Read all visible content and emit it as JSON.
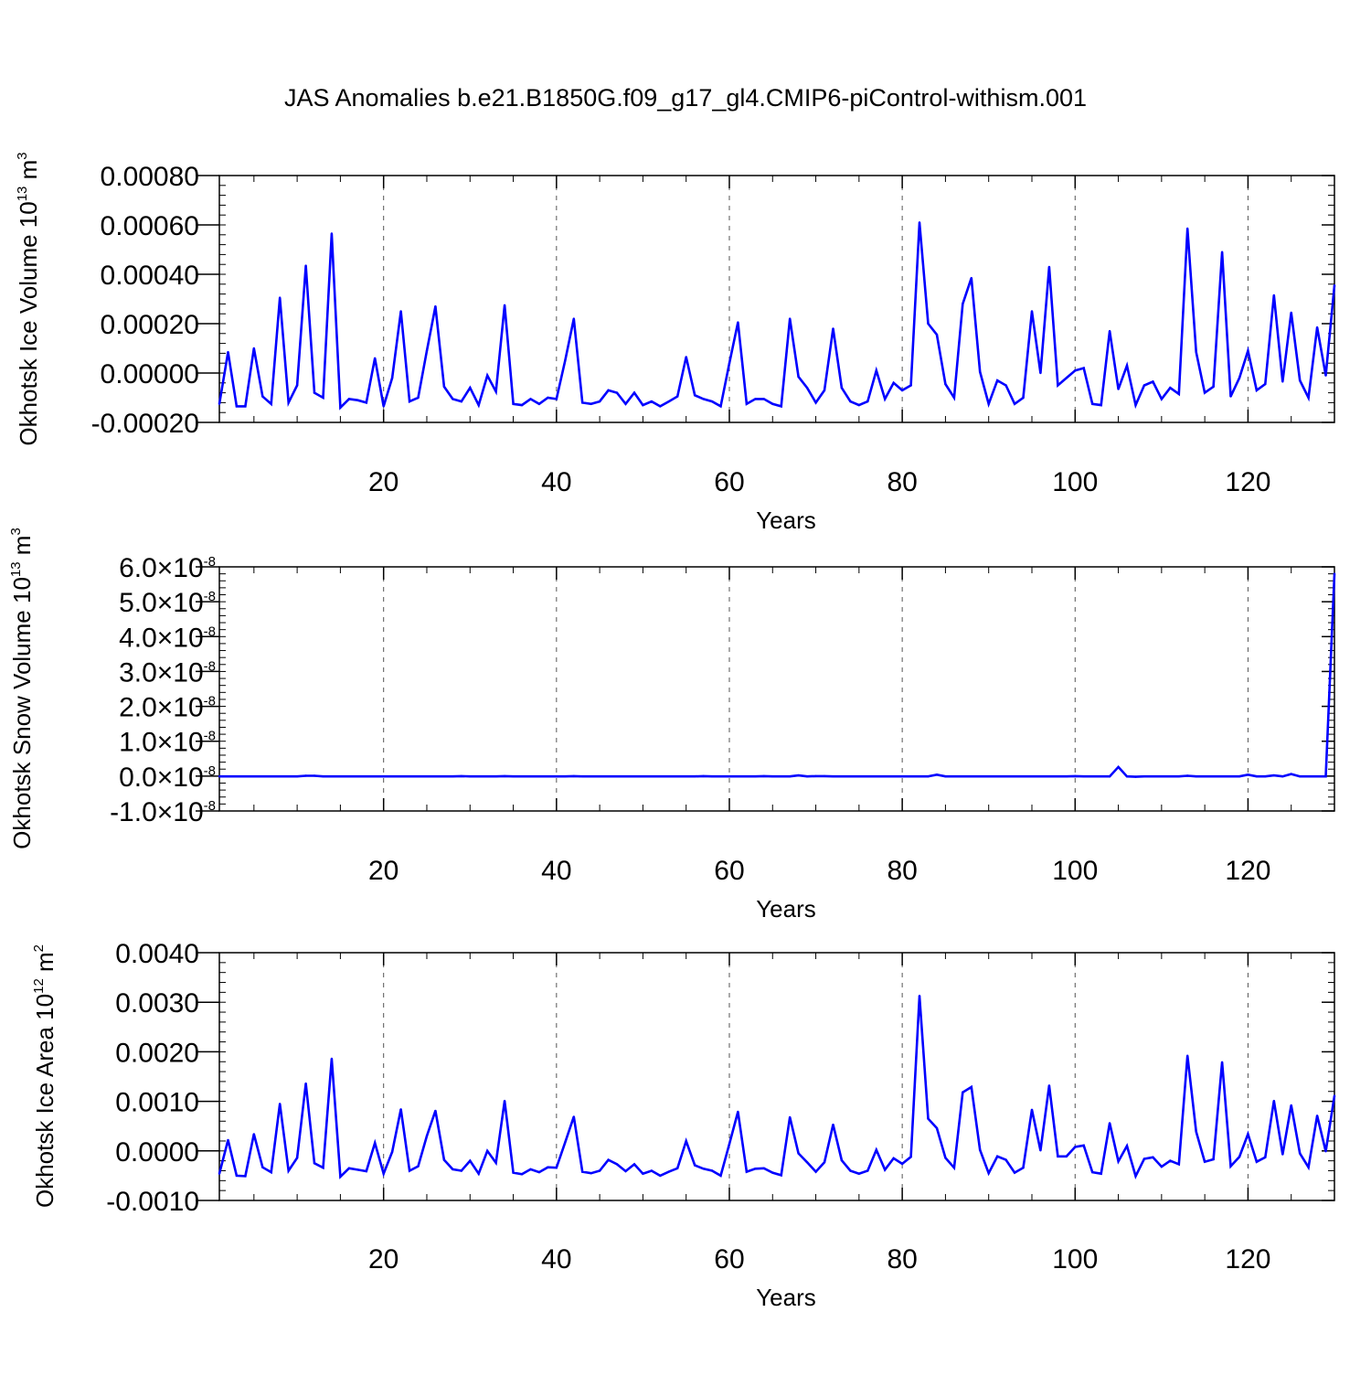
{
  "figure": {
    "title": "JAS Anomalies b.e21.B1850G.f09_g17_gl4.CMIP6-piControl-withism.001"
  },
  "style": {
    "line_color": "#0000ff",
    "axis_color": "#000000",
    "grid_color": "#555555"
  },
  "chart_data": [
    {
      "type": "line",
      "xlabel": "Years",
      "ylabel_text": "Okhotsk Ice Volume 10",
      "ylabel_exp": "13",
      "ylabel_unit": " m",
      "ylabel_unit_exp": "3",
      "xlim": [
        1,
        130
      ],
      "ylim": [
        -0.0002,
        0.0008
      ],
      "x_ticks": [
        20,
        40,
        60,
        80,
        100,
        120
      ],
      "x_tick_labels": [
        "20",
        "40",
        "60",
        "80",
        "100",
        "120"
      ],
      "y_ticks": [
        -0.0002,
        0.0,
        0.0002,
        0.0004,
        0.0006,
        0.0008
      ],
      "y_tick_labels": [
        "-0.00020",
        "0.00000",
        "0.00020",
        "0.00040",
        "0.00060",
        "0.00080"
      ],
      "y_minor_step": 4e-05,
      "grid": "vertical dashed at major x ticks",
      "x": [
        1,
        2,
        3,
        4,
        5,
        6,
        7,
        8,
        9,
        10,
        11,
        12,
        13,
        14,
        15,
        16,
        17,
        18,
        19,
        20,
        21,
        22,
        23,
        24,
        25,
        26,
        27,
        28,
        29,
        30,
        31,
        32,
        33,
        34,
        35,
        36,
        37,
        38,
        39,
        40,
        41,
        42,
        43,
        44,
        45,
        46,
        47,
        48,
        49,
        50,
        51,
        52,
        53,
        54,
        55,
        56,
        57,
        58,
        59,
        60,
        61,
        62,
        63,
        64,
        65,
        66,
        67,
        68,
        69,
        70,
        71,
        72,
        73,
        74,
        75,
        76,
        77,
        78,
        79,
        80,
        81,
        82,
        83,
        84,
        85,
        86,
        87,
        88,
        89,
        90,
        91,
        92,
        93,
        94,
        95,
        96,
        97,
        98,
        99,
        100,
        101,
        102,
        103,
        104,
        105,
        106,
        107,
        108,
        109,
        110,
        111,
        112,
        113,
        114,
        115,
        116,
        117,
        118,
        119,
        120,
        121,
        122,
        123,
        124,
        125,
        126,
        127,
        128,
        129,
        130
      ],
      "values": [
        -0.000125,
        8.5e-05,
        -0.000135,
        -0.000135,
        0.0001,
        -9.5e-05,
        -0.000125,
        0.000305,
        -0.00012,
        -5e-05,
        0.000435,
        -8e-05,
        -0.0001,
        0.000565,
        -0.00014,
        -0.000105,
        -0.00011,
        -0.00012,
        6e-05,
        -0.000135,
        -2e-05,
        0.00025,
        -0.000115,
        -0.0001,
        9e-05,
        0.00027,
        -5.5e-05,
        -0.000105,
        -0.000115,
        -6e-05,
        -0.00013,
        -1e-05,
        -7.5e-05,
        0.000275,
        -0.000125,
        -0.00013,
        -0.000105,
        -0.000125,
        -0.0001,
        -0.000105,
        5e-05,
        0.00022,
        -0.00012,
        -0.000125,
        -0.000115,
        -7e-05,
        -8e-05,
        -0.000125,
        -8e-05,
        -0.00013,
        -0.000115,
        -0.000135,
        -0.000115,
        -9.5e-05,
        6.5e-05,
        -9e-05,
        -0.000105,
        -0.000115,
        -0.000135,
        4e-05,
        0.000205,
        -0.000125,
        -0.000105,
        -0.000105,
        -0.000125,
        -0.000135,
        0.00022,
        -1.5e-05,
        -6e-05,
        -0.00012,
        -7e-05,
        0.00018,
        -6e-05,
        -0.000115,
        -0.00013,
        -0.000115,
        1e-05,
        -0.000105,
        -4e-05,
        -7e-05,
        -5e-05,
        0.00061,
        0.0002,
        0.000155,
        -4.5e-05,
        -0.0001,
        0.00028,
        0.000385,
        5e-06,
        -0.000125,
        -3e-05,
        -5e-05,
        -0.000125,
        -0.0001,
        0.00025,
        0.0,
        0.00043,
        -5e-05,
        -2e-05,
        1e-05,
        2e-05,
        -0.000125,
        -0.00013,
        0.00017,
        -6.5e-05,
        3e-05,
        -0.00013,
        -5e-05,
        -3.5e-05,
        -0.000105,
        -6e-05,
        -8.5e-05,
        0.000585,
        8.5e-05,
        -8e-05,
        -5.5e-05,
        0.00049,
        -9.5e-05,
        -2e-05,
        9e-05,
        -7e-05,
        -4.5e-05,
        0.000315,
        -3.5e-05,
        0.000245,
        -3e-05,
        -0.0001,
        0.000185,
        -1e-05,
        0.000355
      ]
    },
    {
      "type": "line",
      "xlabel": "Years",
      "ylabel_text": "Okhotsk Snow Volume 10",
      "ylabel_exp": "13",
      "ylabel_unit": " m",
      "ylabel_unit_exp": "3",
      "xlim": [
        1,
        130
      ],
      "ylim": [
        -1e-08,
        6e-08
      ],
      "x_ticks": [
        20,
        40,
        60,
        80,
        100,
        120
      ],
      "x_tick_labels": [
        "20",
        "40",
        "60",
        "80",
        "100",
        "120"
      ],
      "y_ticks": [
        -1e-08,
        0.0,
        1e-08,
        2e-08,
        3e-08,
        4e-08,
        5e-08,
        6e-08
      ],
      "y_tick_mantissas": [
        "-1.0",
        "0.0",
        "1.0",
        "2.0",
        "3.0",
        "4.0",
        "5.0",
        "6.0"
      ],
      "y_tick_multiplier": "×10",
      "y_tick_exponent": "-8",
      "y_minor_step": 2e-09,
      "grid": "vertical dashed at major x ticks",
      "x": [
        1,
        2,
        3,
        4,
        5,
        6,
        7,
        8,
        9,
        10,
        11,
        12,
        13,
        14,
        15,
        16,
        17,
        18,
        19,
        20,
        21,
        22,
        23,
        24,
        25,
        26,
        27,
        28,
        29,
        30,
        31,
        32,
        33,
        34,
        35,
        36,
        37,
        38,
        39,
        40,
        41,
        42,
        43,
        44,
        45,
        46,
        47,
        48,
        49,
        50,
        51,
        52,
        53,
        54,
        55,
        56,
        57,
        58,
        59,
        60,
        61,
        62,
        63,
        64,
        65,
        66,
        67,
        68,
        69,
        70,
        71,
        72,
        73,
        74,
        75,
        76,
        77,
        78,
        79,
        80,
        81,
        82,
        83,
        84,
        85,
        86,
        87,
        88,
        89,
        90,
        91,
        92,
        93,
        94,
        95,
        96,
        97,
        98,
        99,
        100,
        101,
        102,
        103,
        104,
        105,
        106,
        107,
        108,
        109,
        110,
        111,
        112,
        113,
        114,
        115,
        116,
        117,
        118,
        119,
        120,
        121,
        122,
        123,
        124,
        125,
        126,
        127,
        128,
        129,
        130
      ],
      "values": [
        -1e-10,
        -1e-10,
        -1e-10,
        -1e-10,
        -1e-10,
        -1e-10,
        -1e-10,
        -1e-10,
        -1e-10,
        -1e-10,
        1e-10,
        1e-10,
        -1e-10,
        -1e-10,
        -1e-10,
        -1e-10,
        -1e-10,
        -1e-10,
        -1e-10,
        -1e-10,
        -1e-10,
        -1e-10,
        -1e-10,
        -1e-10,
        -1e-10,
        -1e-10,
        -1e-10,
        -1e-10,
        0.0,
        -1e-10,
        -1e-10,
        -1e-10,
        -1e-10,
        0.0,
        -1e-10,
        -1e-10,
        -1e-10,
        -1e-10,
        -1e-10,
        -1e-10,
        -1e-10,
        0.0,
        -1e-10,
        -1e-10,
        -1e-10,
        -1e-10,
        -1e-10,
        -1e-10,
        -1e-10,
        -1e-10,
        -1e-10,
        -1e-10,
        -1e-10,
        -1e-10,
        -1e-10,
        -1e-10,
        0.0,
        -1e-10,
        -1e-10,
        -1e-10,
        -1e-10,
        -1e-10,
        -1e-10,
        0.0,
        -1e-10,
        -1e-10,
        -1e-10,
        2e-10,
        -1e-10,
        0.0,
        0.0,
        -1e-10,
        -1e-10,
        -1e-10,
        -1e-10,
        -1e-10,
        -1e-10,
        -1e-10,
        -1e-10,
        -1e-10,
        -1e-10,
        -1e-10,
        -1e-10,
        4e-10,
        -1e-10,
        -1e-10,
        -1e-10,
        -1e-10,
        -1e-10,
        -1e-10,
        -1e-10,
        -1e-10,
        -1e-10,
        -1e-10,
        -1e-10,
        -1e-10,
        -1e-10,
        -1e-10,
        -1e-10,
        0.0,
        -1e-10,
        -1e-10,
        -1e-10,
        -1e-10,
        2.6e-09,
        -1e-10,
        -2e-10,
        -1e-10,
        -1e-10,
        -1e-10,
        -1e-10,
        -1e-10,
        1e-10,
        -1e-10,
        -1e-10,
        -1e-10,
        -1e-10,
        -1e-10,
        -1e-10,
        4e-10,
        -1e-10,
        -1e-10,
        2e-10,
        -1e-10,
        6e-10,
        -1e-10,
        -1e-10,
        -1e-10,
        -1e-10,
        5.8e-08
      ]
    },
    {
      "type": "line",
      "xlabel": "Years",
      "ylabel_text": "Okhotsk Ice Area 10",
      "ylabel_exp": "12",
      "ylabel_unit": " m",
      "ylabel_unit_exp": "2",
      "xlim": [
        1,
        130
      ],
      "ylim": [
        -0.001,
        0.004
      ],
      "x_ticks": [
        20,
        40,
        60,
        80,
        100,
        120
      ],
      "x_tick_labels": [
        "20",
        "40",
        "60",
        "80",
        "100",
        "120"
      ],
      "y_ticks": [
        -0.001,
        0.0,
        0.001,
        0.002,
        0.003,
        0.004
      ],
      "y_tick_labels": [
        "-0.0010",
        "0.0000",
        "0.0010",
        "0.0020",
        "0.0030",
        "0.0040"
      ],
      "y_minor_step": 0.0002,
      "grid": "vertical dashed at major x ticks",
      "x": [
        1,
        2,
        3,
        4,
        5,
        6,
        7,
        8,
        9,
        10,
        11,
        12,
        13,
        14,
        15,
        16,
        17,
        18,
        19,
        20,
        21,
        22,
        23,
        24,
        25,
        26,
        27,
        28,
        29,
        30,
        31,
        32,
        33,
        34,
        35,
        36,
        37,
        38,
        39,
        40,
        41,
        42,
        43,
        44,
        45,
        46,
        47,
        48,
        49,
        50,
        51,
        52,
        53,
        54,
        55,
        56,
        57,
        58,
        59,
        60,
        61,
        62,
        63,
        64,
        65,
        66,
        67,
        68,
        69,
        70,
        71,
        72,
        73,
        74,
        75,
        76,
        77,
        78,
        79,
        80,
        81,
        82,
        83,
        84,
        85,
        86,
        87,
        88,
        89,
        90,
        91,
        92,
        93,
        94,
        95,
        96,
        97,
        98,
        99,
        100,
        101,
        102,
        103,
        104,
        105,
        106,
        107,
        108,
        109,
        110,
        111,
        112,
        113,
        114,
        115,
        116,
        117,
        118,
        119,
        120,
        121,
        122,
        123,
        124,
        125,
        126,
        127,
        128,
        129,
        130
      ],
      "values": [
        -0.00046,
        0.00022,
        -0.0005,
        -0.00051,
        0.00034,
        -0.00033,
        -0.00043,
        0.00095,
        -0.0004,
        -0.00014,
        0.00136,
        -0.00025,
        -0.00034,
        0.00186,
        -0.00052,
        -0.00035,
        -0.00038,
        -0.00041,
        0.00016,
        -0.00046,
        -2e-05,
        0.00084,
        -0.0004,
        -0.00031,
        0.0003,
        0.00081,
        -0.00018,
        -0.00037,
        -0.0004,
        -0.0002,
        -0.00046,
        0.0,
        -0.00024,
        0.00101,
        -0.00044,
        -0.00047,
        -0.00037,
        -0.00043,
        -0.00033,
        -0.00034,
        0.00017,
        0.00069,
        -0.00042,
        -0.00045,
        -0.0004,
        -0.00018,
        -0.00027,
        -0.00041,
        -0.00027,
        -0.00046,
        -0.0004,
        -0.0005,
        -0.00042,
        -0.00035,
        0.0002,
        -0.00029,
        -0.00036,
        -0.0004,
        -0.0005,
        0.00014,
        0.00079,
        -0.00042,
        -0.00036,
        -0.00035,
        -0.00044,
        -0.00049,
        0.00068,
        -5e-05,
        -0.00023,
        -0.00042,
        -0.00023,
        0.00053,
        -0.00019,
        -0.0004,
        -0.00046,
        -0.0004,
        2e-05,
        -0.00038,
        -0.00015,
        -0.00026,
        -0.00012,
        0.00313,
        0.00065,
        0.00046,
        -0.00014,
        -0.00034,
        0.00118,
        0.00129,
        2e-05,
        -0.00045,
        -0.00011,
        -0.00018,
        -0.00044,
        -0.00034,
        0.00083,
        1e-05,
        0.00132,
        -0.00011,
        -0.00011,
        8e-05,
        0.00011,
        -0.00043,
        -0.00046,
        0.00056,
        -0.00021,
        0.0001,
        -0.00051,
        -0.00016,
        -0.00013,
        -0.00032,
        -0.0002,
        -0.00027,
        0.00192,
        0.00039,
        -0.00022,
        -0.00017,
        0.00179,
        -0.00031,
        -0.00012,
        0.00034,
        -0.00022,
        -0.00013,
        0.00101,
        -7e-05,
        0.00092,
        -5e-05,
        -0.00033,
        0.00071,
        -1e-05,
        0.00111
      ]
    }
  ]
}
